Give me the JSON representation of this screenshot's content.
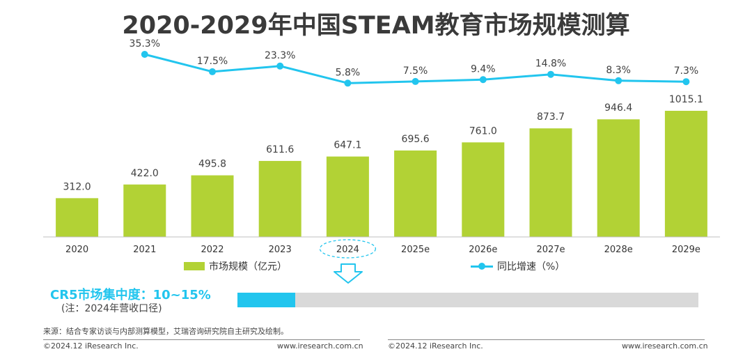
{
  "title": "2020-2029年中国STEAM教育市场规模测算",
  "chart_data": {
    "type": "bar+line",
    "categories": [
      "2020",
      "2021",
      "2022",
      "2023",
      "2024",
      "2025e",
      "2026e",
      "2027e",
      "2028e",
      "2029e"
    ],
    "series": [
      {
        "name": "市场规模（亿元）",
        "type": "bar",
        "values": [
          312.0,
          422.0,
          495.8,
          611.6,
          647.1,
          695.6,
          761.0,
          873.7,
          946.4,
          1015.1
        ],
        "labels": [
          "312.0",
          "422.0",
          "495.8",
          "611.6",
          "647.1",
          "695.6",
          "761.0",
          "873.7",
          "946.4",
          "1015.1"
        ],
        "color": "#b2d235"
      },
      {
        "name": "同比增速（%）",
        "type": "line",
        "values": [
          null,
          35.3,
          17.5,
          23.3,
          5.8,
          7.5,
          9.4,
          14.8,
          8.3,
          7.3
        ],
        "labels": [
          "",
          "35.3%",
          "17.5%",
          "23.3%",
          "5.8%",
          "7.5%",
          "9.4%",
          "14.8%",
          "8.3%",
          "7.3%"
        ],
        "color": "#22c5ee"
      }
    ],
    "highlight_category": "2024",
    "ylim_bar": [
      0,
      1100
    ],
    "ylim_line": [
      0,
      40
    ]
  },
  "legend": {
    "bar_label": "市场规模（亿元）",
    "line_label": "同比增速（%）"
  },
  "cr5": {
    "title": "CR5市场集中度：10~15%",
    "note": "(注：2024年营收口径)",
    "fill_fraction": 0.125,
    "fill_color": "#22c5ee"
  },
  "source": "来源：结合专家访谈与内部测算模型，艾瑞咨询研究院自主研究及绘制。",
  "footer": {
    "left_1": "©2024.12 iResearch Inc.",
    "right_1": "www.iresearch.com.cn",
    "left_2": "©2024.12 iResearch Inc.",
    "right_2": "www.iresearch.com.cn"
  }
}
